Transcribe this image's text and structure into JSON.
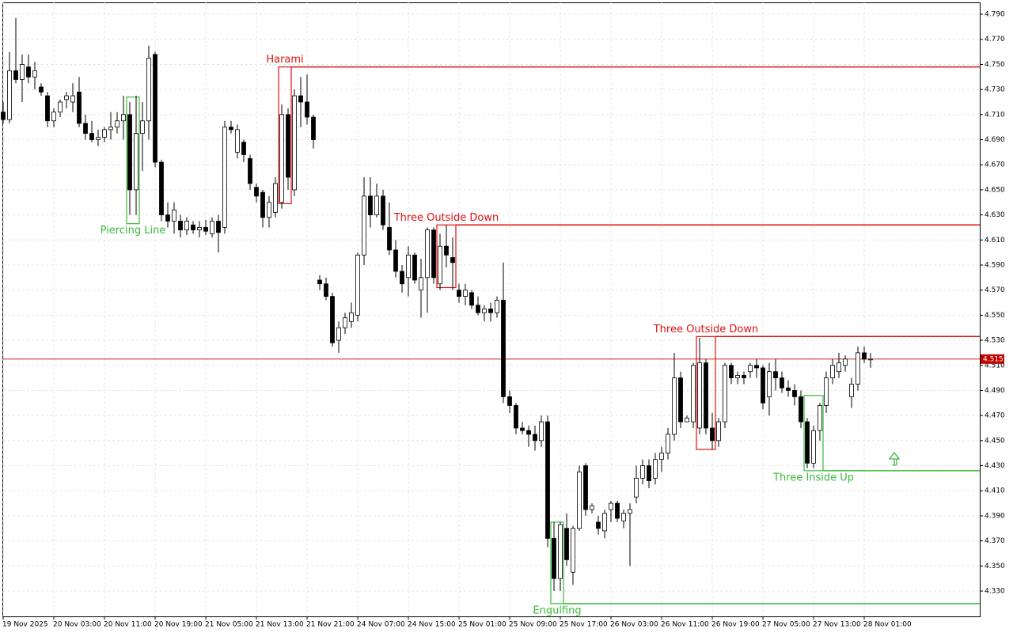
{
  "chart_data": {
    "type": "candlestick",
    "categories": [
      "19 Nov 2025",
      null,
      null,
      null,
      null,
      null,
      null,
      null,
      "20 Nov 03:00",
      null,
      null,
      null,
      null,
      null,
      null,
      null,
      "20 Nov 11:00",
      null,
      null,
      null,
      null,
      null,
      null,
      null,
      "20 Nov 19:00",
      null,
      null,
      null,
      null,
      null,
      null,
      null,
      "21 Nov 05:00",
      null,
      null,
      null,
      null,
      null,
      null,
      null,
      "21 Nov 13:00",
      null,
      null,
      null,
      null,
      null,
      null,
      null,
      "21 Nov 21:00",
      null,
      null,
      null,
      null,
      null,
      null,
      null,
      "24 Nov 07:00",
      null,
      null,
      null,
      null,
      null,
      null,
      null,
      "24 Nov 15:00",
      null,
      null,
      null,
      null,
      null,
      null,
      null,
      "25 Nov 01:00",
      null,
      null,
      null,
      null,
      null,
      null,
      null,
      "25 Nov 09:00",
      null,
      null,
      null,
      null,
      null,
      null,
      null,
      "25 Nov 17:00",
      null,
      null,
      null,
      null,
      null,
      null,
      null,
      "26 Nov 03:00",
      null,
      null,
      null,
      null,
      null,
      null,
      null,
      "26 Nov 11:00",
      null,
      null,
      null,
      null,
      null,
      null,
      null,
      "26 Nov 19:00",
      null,
      null,
      null,
      null,
      null,
      null,
      null,
      "27 Nov 05:00",
      null,
      null,
      null,
      null,
      null,
      null,
      null,
      "27 Nov 13:00",
      null,
      null,
      null,
      null,
      null,
      null,
      null,
      "28 Nov 01:00",
      null
    ],
    "open": [
      4.712,
      4.706,
      4.745,
      4.738,
      4.748,
      4.74,
      4.732,
      4.725,
      4.705,
      4.712,
      4.722,
      4.72,
      4.728,
      4.703,
      4.695,
      4.69,
      4.692,
      4.698,
      4.7,
      4.705,
      4.71,
      4.65,
      4.695,
      4.705,
      4.758,
      4.672,
      4.63,
      4.625,
      4.625,
      4.618,
      4.622,
      4.618,
      4.62,
      4.615,
      4.625,
      4.62,
      4.7,
      4.68,
      4.688,
      4.675,
      4.652,
      4.648,
      4.628,
      4.632,
      4.64,
      4.71,
      4.65,
      4.725,
      4.72,
      4.708,
      4.578,
      4.575,
      4.565,
      4.53,
      4.54,
      4.545,
      4.55,
      4.598,
      4.645,
      4.63,
      4.645,
      4.62,
      4.602,
      4.585,
      4.58,
      4.598,
      4.57,
      4.58,
      4.618,
      4.575,
      4.605,
      4.596,
      4.57,
      4.565,
      4.568,
      4.558,
      4.552,
      4.555,
      4.552,
      4.562,
      4.485,
      4.478,
      4.46,
      4.458,
      4.455,
      4.45,
      4.465,
      4.372,
      4.34,
      4.38,
      4.345,
      4.38,
      4.43,
      4.395,
      4.385,
      4.378,
      4.395,
      4.4,
      4.386,
      4.392,
      4.405,
      4.42,
      4.43,
      4.42,
      4.435,
      4.44,
      4.455,
      4.5,
      4.465,
      4.465,
      4.46,
      4.512,
      4.46,
      4.45,
      4.465,
      4.51,
      4.5,
      4.502,
      4.505,
      4.51,
      4.508,
      4.485,
      4.505,
      4.5,
      4.492,
      4.49,
      4.485,
      4.465,
      4.432,
      4.458,
      4.478,
      4.5,
      4.505,
      4.51,
      4.485,
      4.495,
      4.52,
      4.515
    ],
    "high": [
      4.72,
      4.76,
      4.787,
      4.758,
      4.758,
      4.752,
      4.735,
      4.728,
      4.715,
      4.722,
      4.728,
      4.735,
      4.74,
      4.71,
      4.705,
      4.698,
      4.7,
      4.712,
      4.712,
      4.725,
      4.72,
      4.725,
      4.72,
      4.765,
      4.76,
      4.674,
      4.64,
      4.64,
      4.63,
      4.628,
      4.625,
      4.625,
      4.626,
      4.628,
      4.63,
      4.705,
      4.705,
      4.702,
      4.69,
      4.678,
      4.655,
      4.65,
      4.645,
      4.66,
      4.718,
      4.715,
      4.73,
      4.74,
      4.742,
      4.71,
      4.582,
      4.58,
      4.568,
      4.545,
      4.552,
      4.56,
      4.6,
      4.66,
      4.66,
      4.655,
      4.65,
      4.64,
      4.61,
      4.59,
      4.605,
      4.6,
      4.595,
      4.62,
      4.62,
      4.615,
      4.622,
      4.612,
      4.575,
      4.575,
      4.57,
      4.565,
      4.558,
      4.56,
      4.565,
      4.592,
      4.49,
      4.48,
      4.465,
      4.462,
      4.462,
      4.47,
      4.47,
      4.385,
      4.385,
      4.392,
      4.382,
      4.43,
      4.432,
      4.4,
      4.39,
      4.395,
      4.402,
      4.402,
      4.395,
      4.4,
      4.43,
      4.435,
      4.435,
      4.44,
      4.445,
      4.46,
      4.52,
      4.505,
      4.47,
      4.512,
      4.532,
      4.515,
      4.472,
      4.468,
      4.512,
      4.512,
      4.505,
      4.505,
      4.512,
      4.515,
      4.51,
      4.512,
      4.515,
      4.505,
      4.498,
      4.495,
      4.49,
      4.468,
      4.462,
      4.48,
      4.505,
      4.515,
      4.52,
      4.518,
      4.5,
      4.525,
      4.525,
      4.52
    ],
    "low": [
      4.703,
      4.703,
      4.735,
      4.72,
      4.735,
      4.73,
      4.725,
      4.7,
      4.7,
      4.708,
      4.715,
      4.712,
      4.7,
      4.69,
      4.688,
      4.685,
      4.688,
      4.69,
      4.695,
      4.69,
      4.63,
      4.63,
      4.665,
      4.69,
      4.668,
      4.625,
      4.62,
      4.615,
      4.612,
      4.614,
      4.615,
      4.612,
      4.614,
      4.612,
      4.6,
      4.615,
      4.695,
      4.675,
      4.672,
      4.65,
      4.64,
      4.62,
      4.62,
      4.628,
      4.635,
      4.65,
      4.645,
      4.7,
      4.702,
      4.683,
      4.57,
      4.562,
      4.525,
      4.52,
      4.535,
      4.54,
      4.545,
      4.59,
      4.62,
      4.628,
      4.618,
      4.598,
      4.58,
      4.568,
      4.565,
      4.575,
      4.548,
      4.552,
      4.575,
      4.57,
      4.588,
      4.57,
      4.56,
      4.558,
      4.555,
      4.55,
      4.545,
      4.545,
      4.548,
      4.48,
      4.472,
      4.455,
      4.455,
      4.445,
      4.442,
      4.445,
      4.365,
      4.33,
      4.33,
      4.35,
      4.335,
      4.378,
      4.39,
      4.392,
      4.375,
      4.372,
      4.385,
      4.385,
      4.38,
      4.35,
      4.4,
      4.415,
      4.412,
      4.415,
      4.425,
      4.435,
      4.45,
      4.46,
      4.465,
      4.46,
      4.455,
      4.455,
      4.443,
      4.445,
      4.46,
      4.495,
      4.495,
      4.495,
      4.5,
      4.5,
      4.475,
      4.47,
      4.49,
      4.488,
      4.485,
      4.478,
      4.46,
      4.428,
      4.428,
      4.45,
      4.472,
      4.495,
      4.5,
      4.505,
      4.476,
      4.49,
      4.512,
      4.508
    ],
    "close": [
      4.706,
      4.745,
      4.738,
      4.75,
      4.74,
      4.745,
      4.728,
      4.705,
      4.712,
      4.72,
      4.725,
      4.725,
      4.703,
      4.695,
      4.69,
      4.692,
      4.698,
      4.7,
      4.705,
      4.71,
      4.65,
      4.695,
      4.705,
      4.755,
      4.672,
      4.63,
      4.625,
      4.634,
      4.618,
      4.625,
      4.618,
      4.62,
      4.617,
      4.625,
      4.616,
      4.7,
      4.698,
      4.698,
      4.678,
      4.655,
      4.645,
      4.628,
      4.64,
      4.655,
      4.71,
      4.66,
      4.725,
      4.72,
      4.708,
      4.69,
      4.575,
      4.565,
      4.528,
      4.54,
      4.548,
      4.552,
      4.598,
      4.645,
      4.63,
      4.645,
      4.622,
      4.602,
      4.585,
      4.575,
      4.598,
      4.578,
      4.58,
      4.618,
      4.58,
      4.605,
      4.598,
      4.592,
      4.565,
      4.57,
      4.558,
      4.552,
      4.555,
      4.552,
      4.562,
      4.485,
      4.478,
      4.46,
      4.458,
      4.455,
      4.45,
      4.465,
      4.372,
      4.34,
      4.383,
      4.355,
      4.38,
      4.425,
      4.395,
      4.398,
      4.38,
      4.392,
      4.4,
      4.388,
      4.392,
      4.395,
      4.42,
      4.43,
      4.418,
      4.435,
      4.44,
      4.455,
      4.5,
      4.465,
      4.468,
      4.51,
      4.512,
      4.46,
      4.45,
      4.465,
      4.51,
      4.5,
      4.502,
      4.5,
      4.51,
      4.508,
      4.48,
      4.505,
      4.5,
      4.492,
      4.49,
      4.485,
      4.465,
      4.432,
      4.458,
      4.478,
      4.5,
      4.51,
      4.512,
      4.515,
      4.495,
      4.52,
      4.515,
      4.515
    ],
    "up_color": "#ffffff",
    "down_color": "#000000",
    "ylim": [
      4.3098,
      4.7995
    ],
    "yticks": [
      {
        "value": 4.33,
        "label": "4.330"
      },
      {
        "value": 4.35,
        "label": "4.350"
      },
      {
        "value": 4.37,
        "label": "4.370"
      },
      {
        "value": 4.39,
        "label": "4.390"
      },
      {
        "value": 4.41,
        "label": "4.410"
      },
      {
        "value": 4.43,
        "label": "4.430"
      },
      {
        "value": 4.45,
        "label": "4.450"
      },
      {
        "value": 4.47,
        "label": "4.470"
      },
      {
        "value": 4.49,
        "label": "4.490"
      },
      {
        "value": 4.51,
        "label": "4.510"
      },
      {
        "value": 4.53,
        "label": "4.530"
      },
      {
        "value": 4.55,
        "label": "4.550"
      },
      {
        "value": 4.57,
        "label": "4.570"
      },
      {
        "value": 4.59,
        "label": "4.590"
      },
      {
        "value": 4.61,
        "label": "4.610"
      },
      {
        "value": 4.63,
        "label": "4.630"
      },
      {
        "value": 4.65,
        "label": "4.650"
      },
      {
        "value": 4.67,
        "label": "4.670"
      },
      {
        "value": 4.69,
        "label": "4.690"
      },
      {
        "value": 4.71,
        "label": "4.710"
      },
      {
        "value": 4.73,
        "label": "4.730"
      },
      {
        "value": 4.75,
        "label": "4.750"
      },
      {
        "value": 4.77,
        "label": "4.770"
      },
      {
        "value": 4.79,
        "label": "4.790"
      }
    ],
    "grid": true,
    "current_price": 4.515,
    "current_price_color": "#c00000",
    "patterns": [
      {
        "label": "Piercing Line",
        "color": "#3cb83c",
        "candles": [
          20,
          21
        ],
        "box": [
          4.623,
          4.724
        ]
      },
      {
        "label": "Harami",
        "color": "#dd1111",
        "candles": [
          44,
          45
        ],
        "box": [
          4.639,
          4.748
        ],
        "level": 4.748
      },
      {
        "label": "Three Outside Down",
        "color": "#dd1111",
        "candles": [
          69,
          71
        ],
        "box": [
          4.572,
          4.622
        ],
        "level": 4.622
      },
      {
        "label": "Engulfing",
        "color": "#3cb83c",
        "candles": [
          87,
          88
        ],
        "box": [
          4.32,
          4.385
        ],
        "level": 4.32
      },
      {
        "label": "Three Outside Down",
        "color": "#dd1111",
        "candles": [
          110,
          112
        ],
        "box": [
          4.443,
          4.533
        ],
        "level": 4.533
      },
      {
        "label": "Three Inside Up",
        "color": "#3cb83c",
        "candles": [
          127,
          129
        ],
        "box": [
          4.426,
          4.486
        ],
        "level": 4.426
      }
    ]
  }
}
